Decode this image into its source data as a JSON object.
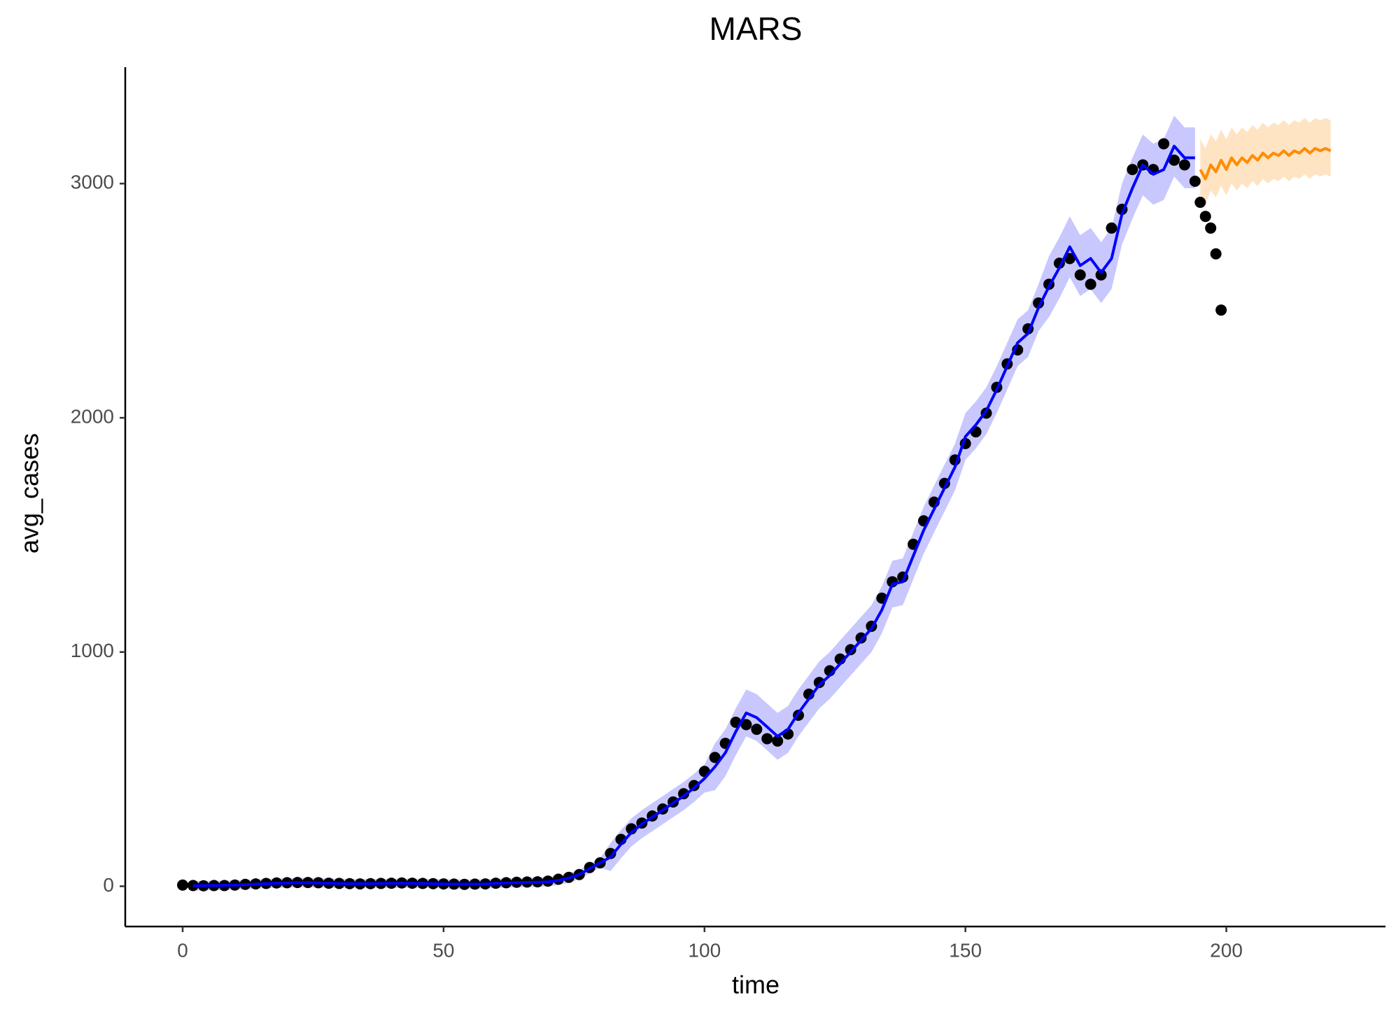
{
  "chart_data": {
    "type": "line",
    "title": "MARS",
    "x_label": "time",
    "y_label": "avg_cases",
    "xlim": [
      -11,
      230.5
    ],
    "ylim": [
      -172,
      3497
    ],
    "xticks": [
      0,
      50,
      100,
      150,
      200
    ],
    "yticks": [
      0,
      1000,
      2000,
      3000
    ],
    "grid": false,
    "series": [
      {
        "kind": "points",
        "color": "#000000",
        "x": [
          0,
          2,
          4,
          6,
          8,
          10,
          12,
          14,
          16,
          18,
          20,
          22,
          24,
          26,
          28,
          30,
          32,
          34,
          36,
          38,
          40,
          42,
          44,
          46,
          48,
          50,
          52,
          54,
          56,
          58,
          60,
          62,
          64,
          66,
          68,
          70,
          72,
          74,
          76,
          78,
          80,
          82,
          84,
          86,
          88,
          90,
          92,
          94,
          96,
          98,
          100,
          102,
          104,
          106,
          108,
          110,
          112,
          114,
          116,
          118,
          120,
          122,
          124,
          126,
          128,
          130,
          132,
          134,
          136,
          138,
          140,
          142,
          144,
          146,
          148,
          150,
          152,
          154,
          156,
          158,
          160,
          162,
          164,
          166,
          168,
          170,
          172,
          174,
          176,
          178,
          180,
          182,
          184,
          186,
          188,
          190,
          192,
          194,
          195,
          196,
          197,
          198,
          199
        ],
        "values": [
          5,
          3,
          2,
          3,
          3,
          5,
          8,
          10,
          12,
          14,
          15,
          16,
          16,
          15,
          13,
          12,
          11,
          10,
          11,
          12,
          13,
          14,
          13,
          12,
          11,
          10,
          9,
          8,
          9,
          10,
          13,
          15,
          17,
          18,
          19,
          22,
          30,
          38,
          50,
          80,
          100,
          140,
          200,
          245,
          270,
          300,
          330,
          360,
          395,
          430,
          490,
          550,
          610,
          700,
          690,
          670,
          630,
          620,
          650,
          730,
          820,
          870,
          920,
          970,
          1010,
          1060,
          1110,
          1230,
          1300,
          1320,
          1460,
          1560,
          1640,
          1720,
          1820,
          1890,
          1940,
          2020,
          2130,
          2230,
          2290,
          2380,
          2490,
          2570,
          2660,
          2680,
          2610,
          2570,
          2610,
          2810,
          2890,
          3060,
          3080,
          3060,
          3170,
          3100,
          3080,
          3010,
          2920,
          2860,
          2810,
          2700,
          2460
        ]
      },
      {
        "kind": "line",
        "color": "#0000ff",
        "band_color": "#c8c8ff",
        "x": [
          2,
          4,
          6,
          8,
          10,
          12,
          14,
          16,
          18,
          20,
          22,
          24,
          26,
          28,
          30,
          32,
          34,
          36,
          38,
          40,
          42,
          44,
          46,
          48,
          50,
          52,
          54,
          56,
          58,
          60,
          62,
          64,
          66,
          68,
          70,
          72,
          74,
          76,
          78,
          80,
          82,
          84,
          86,
          88,
          90,
          92,
          94,
          96,
          98,
          100,
          102,
          104,
          106,
          108,
          110,
          112,
          114,
          116,
          118,
          120,
          122,
          124,
          126,
          128,
          130,
          132,
          134,
          136,
          138,
          140,
          142,
          144,
          146,
          148,
          150,
          152,
          154,
          156,
          158,
          160,
          162,
          164,
          166,
          168,
          170,
          172,
          174,
          176,
          178,
          180,
          182,
          184,
          186,
          188,
          190,
          192,
          194
        ],
        "values": [
          2,
          3,
          3,
          4,
          5,
          7,
          9,
          11,
          13,
          14,
          15,
          15,
          14,
          13,
          12,
          11,
          11,
          11,
          12,
          12,
          13,
          12,
          12,
          11,
          10,
          9,
          9,
          9,
          10,
          12,
          14,
          15,
          16,
          17,
          19,
          25,
          35,
          50,
          75,
          100,
          125,
          180,
          230,
          265,
          295,
          325,
          355,
          385,
          420,
          460,
          510,
          570,
          660,
          740,
          720,
          680,
          640,
          670,
          740,
          800,
          860,
          900,
          950,
          1000,
          1050,
          1100,
          1180,
          1290,
          1300,
          1410,
          1520,
          1610,
          1700,
          1790,
          1920,
          1970,
          2030,
          2120,
          2220,
          2320,
          2360,
          2470,
          2560,
          2640,
          2730,
          2650,
          2680,
          2620,
          2680,
          2870,
          2980,
          3080,
          3040,
          3060,
          3160,
          3110,
          3110
        ],
        "lower": [
          -18,
          -17,
          -17,
          -16,
          -15,
          -13,
          -11,
          -9,
          -7,
          -6,
          -5,
          -5,
          -6,
          -7,
          -8,
          -9,
          -9,
          -9,
          -8,
          -8,
          -7,
          -8,
          -8,
          -9,
          -10,
          -11,
          -11,
          -11,
          -10,
          -8,
          -6,
          -5,
          -4,
          -3,
          -1,
          5,
          15,
          30,
          55,
          80,
          65,
          120,
          170,
          205,
          235,
          265,
          295,
          325,
          360,
          400,
          410,
          470,
          560,
          640,
          620,
          580,
          540,
          570,
          640,
          700,
          760,
          800,
          850,
          900,
          950,
          1000,
          1080,
          1190,
          1200,
          1310,
          1420,
          1510,
          1600,
          1690,
          1820,
          1870,
          1930,
          2020,
          2120,
          2220,
          2260,
          2370,
          2430,
          2510,
          2600,
          2520,
          2550,
          2490,
          2550,
          2740,
          2850,
          2950,
          2910,
          2930,
          3030,
          2980,
          2980
        ],
        "upper": [
          22,
          23,
          23,
          24,
          25,
          27,
          29,
          31,
          33,
          34,
          35,
          35,
          34,
          33,
          32,
          31,
          31,
          31,
          32,
          32,
          33,
          32,
          32,
          31,
          30,
          29,
          29,
          29,
          30,
          32,
          34,
          35,
          36,
          37,
          39,
          45,
          55,
          70,
          95,
          120,
          185,
          240,
          290,
          325,
          355,
          385,
          415,
          445,
          480,
          520,
          610,
          670,
          760,
          840,
          820,
          780,
          740,
          770,
          840,
          900,
          960,
          1000,
          1050,
          1100,
          1150,
          1200,
          1280,
          1390,
          1400,
          1510,
          1620,
          1710,
          1800,
          1890,
          2020,
          2070,
          2130,
          2220,
          2320,
          2420,
          2460,
          2570,
          2690,
          2770,
          2860,
          2780,
          2810,
          2750,
          2810,
          3000,
          3110,
          3210,
          3170,
          3190,
          3290,
          3240,
          3240
        ]
      },
      {
        "kind": "line",
        "color": "#ff8c00",
        "band_color": "#ffe4c4",
        "x": [
          195,
          196,
          197,
          198,
          199,
          200,
          201,
          202,
          203,
          204,
          205,
          206,
          207,
          208,
          209,
          210,
          211,
          212,
          213,
          214,
          215,
          216,
          217,
          218,
          219,
          220
        ],
        "values": [
          3060,
          3020,
          3080,
          3050,
          3100,
          3060,
          3110,
          3080,
          3110,
          3090,
          3120,
          3100,
          3130,
          3110,
          3130,
          3120,
          3140,
          3120,
          3140,
          3130,
          3150,
          3130,
          3150,
          3140,
          3150,
          3140
        ],
        "lower": [
          2950,
          2910,
          2970,
          2940,
          2990,
          2950,
          3000,
          2970,
          3000,
          2980,
          3010,
          2990,
          3020,
          3000,
          3020,
          3010,
          3030,
          3010,
          3030,
          3020,
          3040,
          3020,
          3040,
          3030,
          3040,
          3030
        ],
        "upper": [
          3190,
          3150,
          3210,
          3180,
          3230,
          3190,
          3240,
          3210,
          3240,
          3220,
          3250,
          3230,
          3260,
          3240,
          3260,
          3250,
          3270,
          3250,
          3270,
          3260,
          3280,
          3260,
          3280,
          3270,
          3280,
          3270
        ]
      }
    ]
  }
}
